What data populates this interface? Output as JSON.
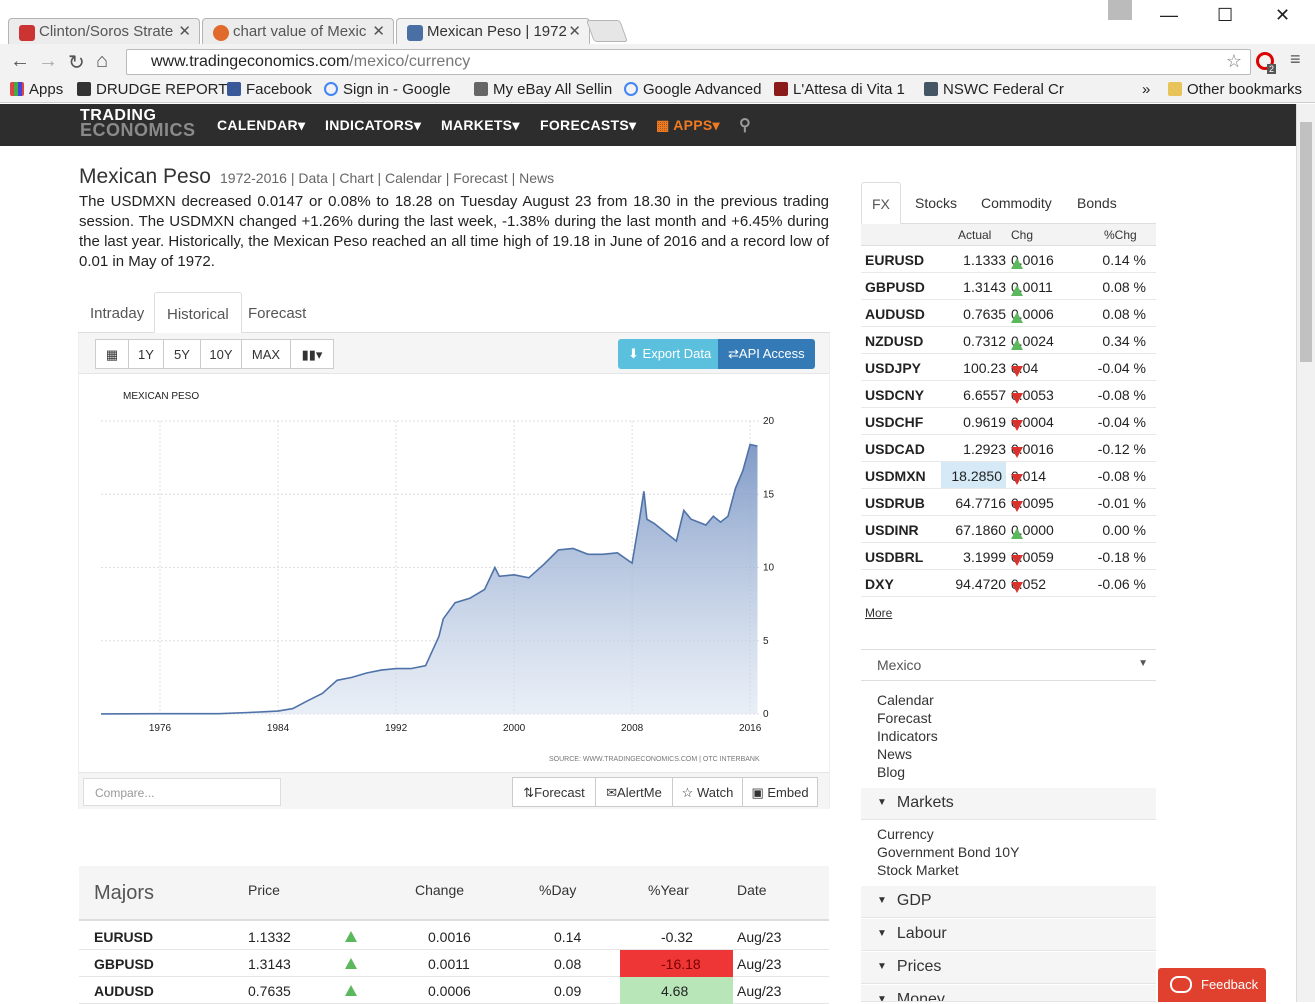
{
  "browser": {
    "tabs": [
      {
        "title": "Clinton/Soros Strate"
      },
      {
        "title": "chart value of Mexic"
      },
      {
        "title": "Mexican Peso | 1972"
      }
    ],
    "url_host": "www.tradingeconomics.com",
    "url_path": "/mexico/currency",
    "bookmarks": [
      "Apps",
      "DRUDGE REPORT",
      "Facebook",
      "Sign in - Google",
      "My eBay All Sellin",
      "Google Advanced",
      "L'Attesa di Vita 1",
      "NSWC Federal Cr",
      "»",
      "Other bookmarks"
    ],
    "extension_badge": "2"
  },
  "site": {
    "logo_line1": "TRADING",
    "logo_line2": "ECONOMICS",
    "nav": [
      "CALENDAR",
      "INDICATORS",
      "MARKETS",
      "FORECASTS",
      "APPS"
    ]
  },
  "page": {
    "title": "Mexican Peso",
    "sublinks": "1972-2016 | Data | Chart | Calendar | Forecast | News",
    "summary": "The USDMXN decreased 0.0147 or 0.08% to 18.28 on Tuesday August 23 from 18.30 in the previous trading session. The USDMXN changed +1.26% during the last week, -1.38% during the last month and +6.45% during the last year. Historically, the Mexican Peso reached an all time high of 19.18 in June of 2016 and a record low of 0.01 in May of 1972."
  },
  "chart_tabs": [
    "Intraday",
    "Historical",
    "Forecast"
  ],
  "chart_toolbar": {
    "ranges": [
      "1Y",
      "5Y",
      "10Y",
      "MAX"
    ],
    "export_label": "Export Data",
    "api_label": "API Access"
  },
  "chart_bottom": {
    "compare_placeholder": "Compare...",
    "buttons": [
      "Forecast",
      "AlertMe",
      "Watch",
      "Embed"
    ]
  },
  "chart_data": {
    "type": "area",
    "title": "MEXICAN PESO",
    "source": "SOURCE: WWW.TRADINGECONOMICS.COM | OTC INTERBANK",
    "x": [
      1972,
      1976,
      1980,
      1982,
      1983,
      1984,
      1985,
      1986,
      1987,
      1988,
      1989,
      1990,
      1991,
      1992,
      1993,
      1994,
      1994.9,
      1995.2,
      1996,
      1997,
      1998,
      1998.7,
      1999,
      2000,
      2001,
      2002,
      2003,
      2004,
      2005,
      2006,
      2007,
      2008,
      2008.5,
      2008.8,
      2009,
      2009.5,
      2010,
      2011,
      2011.5,
      2012,
      2013,
      2013.5,
      2014,
      2014.5,
      2015,
      2015.5,
      2016,
      2016.5
    ],
    "y": [
      0.01,
      0.02,
      0.02,
      0.1,
      0.15,
      0.2,
      0.37,
      0.9,
      1.4,
      2.3,
      2.5,
      2.8,
      3.0,
      3.1,
      3.1,
      3.3,
      5.3,
      6.5,
      7.6,
      7.9,
      8.5,
      10.0,
      9.4,
      9.5,
      9.3,
      10.2,
      11.2,
      11.3,
      10.9,
      10.9,
      11.0,
      10.3,
      13.3,
      15.2,
      13.3,
      13.0,
      12.6,
      11.8,
      13.9,
      13.3,
      12.9,
      13.5,
      13.1,
      13.5,
      15.4,
      16.6,
      18.4,
      18.28
    ],
    "xticks": [
      1976,
      1984,
      1992,
      2000,
      2008,
      2016
    ],
    "yticks": [
      0,
      5,
      10,
      15,
      20
    ],
    "ylim": [
      0,
      20
    ],
    "xlim": [
      1972,
      2016.6
    ],
    "color": "#4f72a8"
  },
  "majors": {
    "title": "Majors",
    "headers": [
      "Price",
      "Change",
      "%Day",
      "%Year",
      "Date"
    ],
    "rows": [
      {
        "sym": "EURUSD",
        "price": "1.1332",
        "dir": "up",
        "change": "0.0016",
        "day": "0.14",
        "year": "-0.32",
        "year_bg": "none",
        "date": "Aug/23"
      },
      {
        "sym": "GBPUSD",
        "price": "1.3143",
        "dir": "up",
        "change": "0.0011",
        "day": "0.08",
        "year": "-16.18",
        "year_bg": "red",
        "date": "Aug/23"
      },
      {
        "sym": "AUDUSD",
        "price": "0.7635",
        "dir": "up",
        "change": "0.0006",
        "day": "0.09",
        "year": "4.68",
        "year_bg": "green",
        "date": "Aug/23"
      }
    ]
  },
  "fx": {
    "tabs": [
      "FX",
      "Stocks",
      "Commodity",
      "Bonds"
    ],
    "headers": [
      "Actual",
      "Chg",
      "%Chg"
    ],
    "rows": [
      {
        "sym": "EURUSD",
        "actual": "1.1333",
        "dir": "up",
        "chg": "0.0016",
        "pct": "0.14 %"
      },
      {
        "sym": "GBPUSD",
        "actual": "1.3143",
        "dir": "up",
        "chg": "0.0011",
        "pct": "0.08 %"
      },
      {
        "sym": "AUDUSD",
        "actual": "0.7635",
        "dir": "up",
        "chg": "0.0006",
        "pct": "0.08 %"
      },
      {
        "sym": "NZDUSD",
        "actual": "0.7312",
        "dir": "up",
        "chg": "0.0024",
        "pct": "0.34 %"
      },
      {
        "sym": "USDJPY",
        "actual": "100.23",
        "dir": "down",
        "chg": "0.04",
        "pct": "-0.04 %"
      },
      {
        "sym": "USDCNY",
        "actual": "6.6557",
        "dir": "down",
        "chg": "0.0053",
        "pct": "-0.08 %"
      },
      {
        "sym": "USDCHF",
        "actual": "0.9619",
        "dir": "down",
        "chg": "0.0004",
        "pct": "-0.04 %"
      },
      {
        "sym": "USDCAD",
        "actual": "1.2923",
        "dir": "down",
        "chg": "0.0016",
        "pct": "-0.12 %"
      },
      {
        "sym": "USDMXN",
        "actual": "18.2850",
        "dir": "down",
        "chg": "0.014",
        "pct": "-0.08 %",
        "highlight": true
      },
      {
        "sym": "USDRUB",
        "actual": "64.7716",
        "dir": "down",
        "chg": "0.0095",
        "pct": "-0.01 %"
      },
      {
        "sym": "USDINR",
        "actual": "67.1860",
        "dir": "up",
        "chg": "0.0000",
        "pct": "0.00 %"
      },
      {
        "sym": "USDBRL",
        "actual": "3.1999",
        "dir": "down",
        "chg": "0.0059",
        "pct": "-0.18 %"
      },
      {
        "sym": "DXY",
        "actual": "94.4720",
        "dir": "down",
        "chg": "0.052",
        "pct": "-0.06 %"
      }
    ],
    "more_label": "More"
  },
  "sidebar": {
    "country": "Mexico",
    "links": [
      "Calendar",
      "Forecast",
      "Indicators",
      "News",
      "Blog"
    ],
    "markets_label": "Markets",
    "markets_links": [
      "Currency",
      "Government Bond 10Y",
      "Stock Market"
    ],
    "sections": [
      "GDP",
      "Labour",
      "Prices",
      "Money"
    ]
  },
  "feedback_label": "Feedback"
}
